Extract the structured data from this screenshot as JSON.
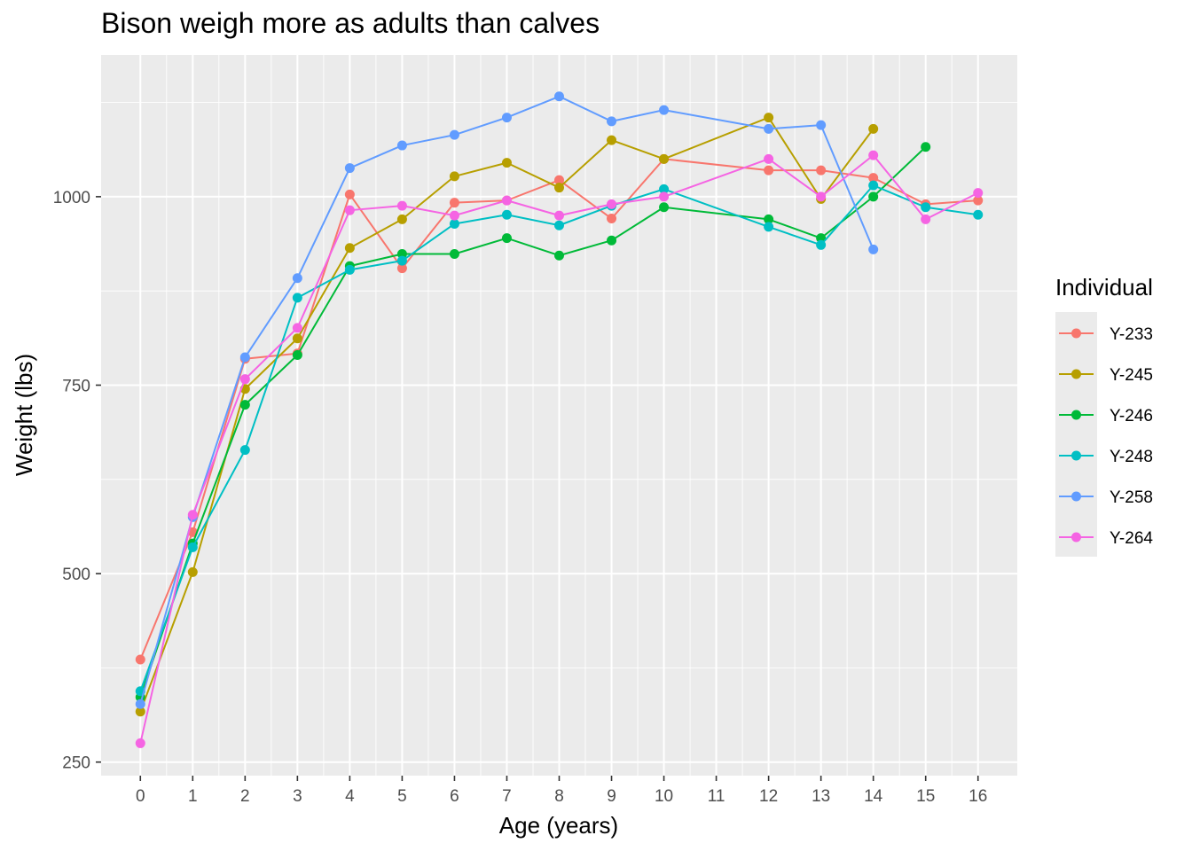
{
  "chart_data": {
    "type": "line",
    "title": "Bison weigh more as adults than calves",
    "xlabel": "Age (years)",
    "ylabel": "Weight (lbs)",
    "x_ticks": [
      0,
      1,
      2,
      3,
      4,
      5,
      6,
      7,
      8,
      9,
      10,
      11,
      12,
      13,
      14,
      15,
      16
    ],
    "y_ticks": [
      250,
      500,
      750,
      1000
    ],
    "xlim": [
      -0.75,
      16.75
    ],
    "ylim": [
      232,
      1188
    ],
    "grid": true,
    "legend_title": "Individual",
    "legend_position": "right",
    "series": [
      {
        "name": "Y-233",
        "color": "#F8766D",
        "points": [
          [
            0,
            386
          ],
          [
            1,
            555
          ],
          [
            2,
            785
          ],
          [
            3,
            792
          ],
          [
            4,
            1003
          ],
          [
            5,
            905
          ],
          [
            6,
            992
          ],
          [
            7,
            995
          ],
          [
            8,
            1022
          ],
          [
            9,
            971
          ],
          [
            10,
            1050
          ],
          [
            12,
            1035
          ],
          [
            13,
            1035
          ],
          [
            14,
            1025
          ],
          [
            15,
            990
          ],
          [
            16,
            995
          ]
        ]
      },
      {
        "name": "Y-245",
        "color": "#B79F00",
        "points": [
          [
            0,
            317
          ],
          [
            1,
            502
          ],
          [
            2,
            745
          ],
          [
            3,
            812
          ],
          [
            4,
            932
          ],
          [
            5,
            970
          ],
          [
            6,
            1027
          ],
          [
            7,
            1045
          ],
          [
            8,
            1012
          ],
          [
            9,
            1075
          ],
          [
            10,
            1050
          ],
          [
            12,
            1105
          ],
          [
            13,
            997
          ],
          [
            14,
            1090
          ]
        ]
      },
      {
        "name": "Y-246",
        "color": "#00BA38",
        "points": [
          [
            0,
            336
          ],
          [
            1,
            540
          ],
          [
            2,
            724
          ],
          [
            3,
            790
          ],
          [
            4,
            908
          ],
          [
            5,
            924
          ],
          [
            6,
            924
          ],
          [
            7,
            945
          ],
          [
            8,
            922
          ],
          [
            9,
            942
          ],
          [
            10,
            986
          ],
          [
            12,
            970
          ],
          [
            13,
            945
          ],
          [
            14,
            1000
          ],
          [
            15,
            1066
          ]
        ]
      },
      {
        "name": "Y-248",
        "color": "#00BFC4",
        "points": [
          [
            0,
            344
          ],
          [
            1,
            535
          ],
          [
            2,
            664
          ],
          [
            3,
            866
          ],
          [
            4,
            903
          ],
          [
            5,
            915
          ],
          [
            6,
            964
          ],
          [
            7,
            976
          ],
          [
            8,
            962
          ],
          [
            9,
            988
          ],
          [
            10,
            1010
          ],
          [
            12,
            960
          ],
          [
            13,
            936
          ],
          [
            14,
            1015
          ],
          [
            15,
            986
          ],
          [
            16,
            976
          ]
        ]
      },
      {
        "name": "Y-258",
        "color": "#619CFF",
        "points": [
          [
            0,
            327
          ],
          [
            1,
            575
          ],
          [
            2,
            787
          ],
          [
            3,
            892
          ],
          [
            4,
            1038
          ],
          [
            5,
            1068
          ],
          [
            6,
            1082
          ],
          [
            7,
            1105
          ],
          [
            8,
            1133
          ],
          [
            9,
            1100
          ],
          [
            10,
            1115
          ],
          [
            12,
            1090
          ],
          [
            13,
            1095
          ],
          [
            14,
            930
          ]
        ]
      },
      {
        "name": "Y-264",
        "color": "#F564E3",
        "points": [
          [
            0,
            275
          ],
          [
            1,
            578
          ],
          [
            2,
            758
          ],
          [
            3,
            826
          ],
          [
            4,
            982
          ],
          [
            5,
            988
          ],
          [
            6,
            975
          ],
          [
            7,
            995
          ],
          [
            8,
            975
          ],
          [
            9,
            990
          ],
          [
            10,
            1000
          ],
          [
            12,
            1050
          ],
          [
            13,
            1000
          ],
          [
            14,
            1055
          ],
          [
            15,
            970
          ],
          [
            16,
            1005
          ]
        ]
      }
    ]
  }
}
